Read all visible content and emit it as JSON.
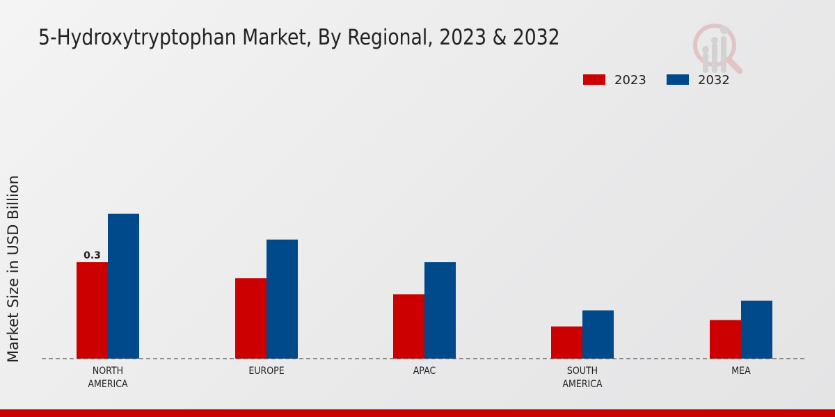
{
  "chart_data": {
    "type": "bar",
    "title": "5-Hydroxytryptophan Market, By Regional, 2023 & 2032",
    "xlabel": "",
    "ylabel": "Market Size in USD Billion",
    "categories": [
      "NORTH AMERICA",
      "EUROPE",
      "APAC",
      "SOUTH AMERICA",
      "MEA"
    ],
    "category_lines": [
      [
        "NORTH",
        "AMERICA"
      ],
      [
        "EUROPE"
      ],
      [
        "APAC"
      ],
      [
        "SOUTH",
        "AMERICA"
      ],
      [
        "MEA"
      ]
    ],
    "series": [
      {
        "name": "2023",
        "color": "#cc0000",
        "values": [
          0.3,
          0.25,
          0.2,
          0.1,
          0.12
        ]
      },
      {
        "name": "2032",
        "color": "#004a8c",
        "values": [
          0.45,
          0.37,
          0.3,
          0.15,
          0.18
        ]
      }
    ],
    "data_labels": [
      {
        "series": 0,
        "index": 0,
        "text": "0.3"
      }
    ],
    "ylim": [
      0,
      0.5
    ],
    "grid": false,
    "legend": "top-right"
  }
}
